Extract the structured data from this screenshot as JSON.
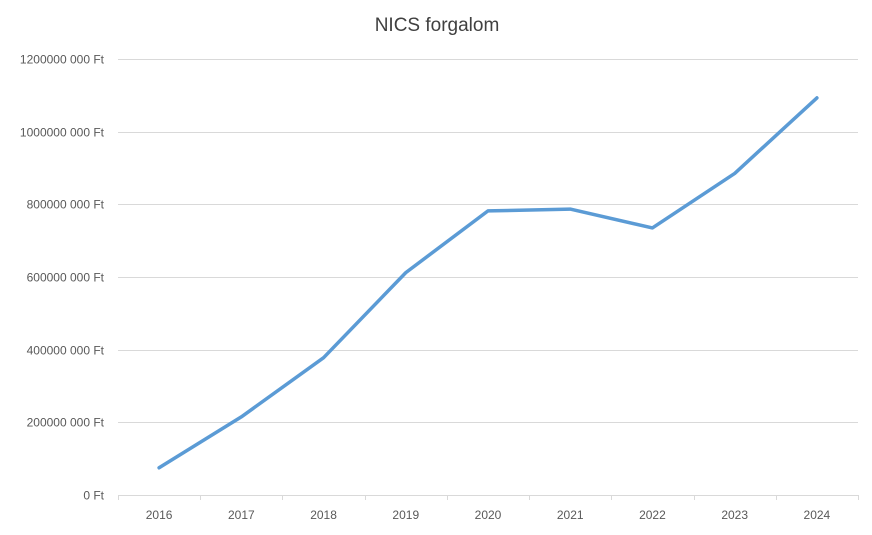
{
  "chart_data": {
    "type": "line",
    "title": "NICS forgalom",
    "xlabel": "",
    "ylabel": "",
    "categories": [
      "2016",
      "2017",
      "2018",
      "2019",
      "2020",
      "2021",
      "2022",
      "2023",
      "2024"
    ],
    "series": [
      {
        "values": [
          75000000,
          215000000,
          378000000,
          612000000,
          782000000,
          787000000,
          735000000,
          885000000,
          1093000000
        ],
        "color": "#5b9bd5"
      }
    ],
    "ylim": [
      0,
      1200000000
    ],
    "yticks": [
      0,
      200000000,
      400000000,
      600000000,
      800000000,
      1000000000,
      1200000000
    ],
    "ytick_labels": [
      "0 Ft",
      "200000 000 Ft",
      "400000 000 Ft",
      "600000 000 Ft",
      "800000 000 Ft",
      "1000000 000 Ft",
      "1200000 000 Ft"
    ],
    "grid": true,
    "legend": "none",
    "colors": {
      "gridline": "#d9d9d9",
      "text": "#595959",
      "title": "#404040"
    }
  }
}
